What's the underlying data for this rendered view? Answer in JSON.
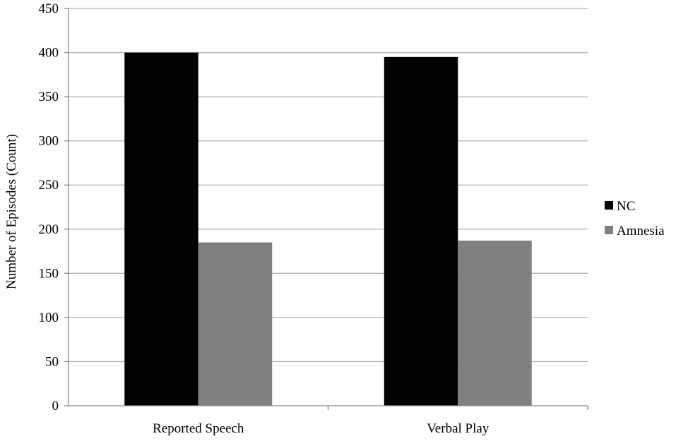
{
  "chart_data": {
    "type": "bar",
    "title": "",
    "xlabel": "",
    "ylabel": "Number of Episodes (Count)",
    "categories": [
      "Reported Speech",
      "Verbal Play"
    ],
    "series": [
      {
        "name": "NC",
        "values": [
          400,
          395
        ],
        "color": "#000000"
      },
      {
        "name": "Amnesia",
        "values": [
          185,
          187
        ],
        "color": "#808080"
      }
    ],
    "ylim": [
      0,
      450
    ],
    "yticks": [
      0,
      50,
      100,
      150,
      200,
      250,
      300,
      350,
      400,
      450
    ],
    "grid": true,
    "legend_position": "right",
    "gridline_color": "#b0b0b0"
  }
}
